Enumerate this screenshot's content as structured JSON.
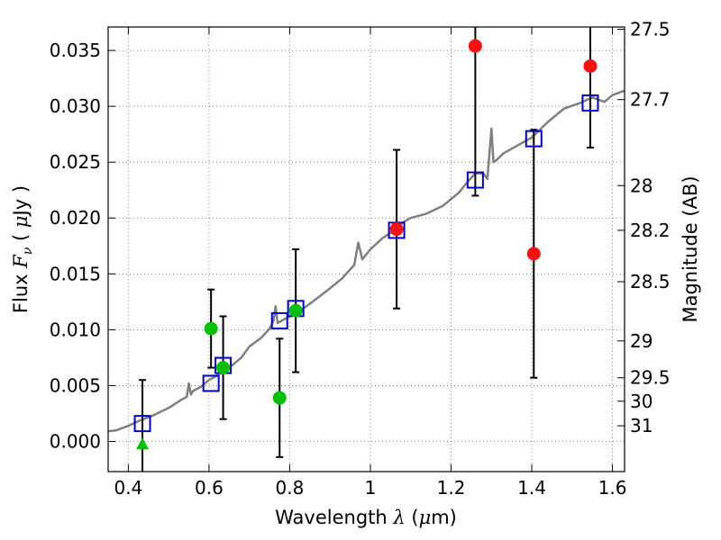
{
  "chart_data": {
    "type": "scatter",
    "xlabel": {
      "prefix": "Wavelength  ",
      "symbol": "λ",
      "middle": " (",
      "unit_symbol": "μ",
      "suffix": "m)"
    },
    "ylabel": {
      "prefix": "Flux  ",
      "symbol": "F",
      "subscript": "ν",
      "middle": "  ( ",
      "unit_symbol": "μ",
      "suffix": "Jy )"
    },
    "y2label": "Magnitude (AB)",
    "xlim": [
      0.35,
      1.63
    ],
    "ylim": [
      -0.0027,
      0.0371
    ],
    "grid": true,
    "x_ticks": [
      {
        "value": 0.4,
        "label": "0.4"
      },
      {
        "value": 0.6,
        "label": "0.6"
      },
      {
        "value": 0.8,
        "label": "0.8"
      },
      {
        "value": 1.0,
        "label": "1"
      },
      {
        "value": 1.2,
        "label": "1.2"
      },
      {
        "value": 1.4,
        "label": "1.4"
      },
      {
        "value": 1.6,
        "label": "1.6"
      }
    ],
    "y_ticks": [
      {
        "value": 0.0,
        "label": "0.000"
      },
      {
        "value": 0.005,
        "label": "0.005"
      },
      {
        "value": 0.01,
        "label": "0.010"
      },
      {
        "value": 0.015,
        "label": "0.015"
      },
      {
        "value": 0.02,
        "label": "0.020"
      },
      {
        "value": 0.025,
        "label": "0.025"
      },
      {
        "value": 0.03,
        "label": "0.030"
      },
      {
        "value": 0.035,
        "label": "0.035"
      }
    ],
    "y2_ticks": [
      {
        "flux": 0.0369,
        "label": "27.5"
      },
      {
        "flux": 0.0306,
        "label": "27.7"
      },
      {
        "flux": 0.0229,
        "label": "28"
      },
      {
        "flux": 0.0189,
        "label": "28.2"
      },
      {
        "flux": 0.0143,
        "label": "28.5"
      },
      {
        "flux": 0.009,
        "label": "29"
      },
      {
        "flux": 0.0057,
        "label": "29.5"
      },
      {
        "flux": 0.0036,
        "label": "30"
      },
      {
        "flux": 0.0014,
        "label": "31"
      }
    ],
    "colors": {
      "model_line": "#7f7f7f",
      "model_points": "#0000cc",
      "green_points": "#00c000",
      "red_points": "#ff1010",
      "errorbars": "#000000"
    },
    "model_spectrum": {
      "x": [
        0.35,
        0.37,
        0.4,
        0.43,
        0.46,
        0.5,
        0.53,
        0.545,
        0.55,
        0.555,
        0.56,
        0.58,
        0.6,
        0.62,
        0.65,
        0.68,
        0.7,
        0.73,
        0.75,
        0.76,
        0.765,
        0.77,
        0.78,
        0.8,
        0.83,
        0.86,
        0.9,
        0.93,
        0.96,
        0.97,
        0.98,
        1.0,
        1.03,
        1.06,
        1.08,
        1.1,
        1.14,
        1.18,
        1.22,
        1.24,
        1.26,
        1.28,
        1.29,
        1.3,
        1.305,
        1.31,
        1.33,
        1.36,
        1.4,
        1.44,
        1.48,
        1.52,
        1.55,
        1.58,
        1.6,
        1.63
      ],
      "y": [
        0.0009,
        0.001,
        0.0014,
        0.0019,
        0.0023,
        0.003,
        0.0037,
        0.004,
        0.0052,
        0.0042,
        0.0045,
        0.0049,
        0.0055,
        0.0059,
        0.0066,
        0.0075,
        0.0085,
        0.0093,
        0.0101,
        0.0108,
        0.0121,
        0.0106,
        0.0108,
        0.0112,
        0.0118,
        0.0126,
        0.0137,
        0.0146,
        0.0158,
        0.0178,
        0.0163,
        0.0172,
        0.0182,
        0.0189,
        0.0196,
        0.02,
        0.0204,
        0.0211,
        0.0223,
        0.0232,
        0.024,
        0.024,
        0.0235,
        0.028,
        0.025,
        0.0251,
        0.0258,
        0.0264,
        0.0272,
        0.0286,
        0.0298,
        0.0303,
        0.0308,
        0.0304,
        0.031,
        0.0314
      ]
    },
    "model_points": {
      "x": [
        0.435,
        0.605,
        0.635,
        0.775,
        0.815,
        1.065,
        1.26,
        1.405,
        1.545
      ],
      "y": [
        0.0016,
        0.0052,
        0.0068,
        0.0108,
        0.0119,
        0.0189,
        0.0234,
        0.0271,
        0.0303
      ]
    },
    "observed": [
      {
        "x": 0.435,
        "y": -0.0003,
        "err": 0.0058,
        "marker": "triangle",
        "color": "green"
      },
      {
        "x": 0.605,
        "y": 0.0101,
        "err": 0.0035,
        "marker": "circle",
        "color": "green"
      },
      {
        "x": 0.635,
        "y": 0.0066,
        "err": 0.0046,
        "marker": "circle",
        "color": "green"
      },
      {
        "x": 0.775,
        "y": 0.0039,
        "err": 0.0053,
        "marker": "circle",
        "color": "green"
      },
      {
        "x": 0.815,
        "y": 0.0117,
        "err": 0.0055,
        "marker": "circle",
        "color": "green"
      },
      {
        "x": 1.065,
        "y": 0.019,
        "err": 0.0071,
        "marker": "circle",
        "color": "red"
      },
      {
        "x": 1.26,
        "y": 0.0354,
        "err": 0.0134,
        "marker": "circle",
        "color": "red"
      },
      {
        "x": 1.405,
        "y": 0.0168,
        "err": 0.0111,
        "marker": "circle",
        "color": "red"
      },
      {
        "x": 1.545,
        "y": 0.0336,
        "err": 0.0073,
        "marker": "circle",
        "color": "red"
      }
    ]
  }
}
